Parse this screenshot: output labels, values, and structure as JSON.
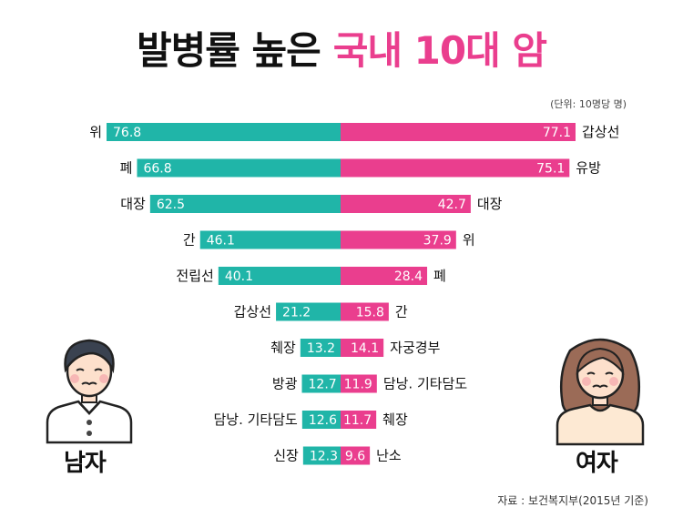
{
  "title": {
    "part1": "발병률 높은",
    "part2": "국내 10대 암"
  },
  "unit_note": "(단위: 10명당 명)",
  "colors": {
    "male": "#20b5a8",
    "female": "#ea3e8e",
    "title_accent": "#ea3e8e"
  },
  "chart_data": {
    "type": "bar",
    "layout": "butterfly",
    "series": [
      {
        "name": "남자",
        "categories": [
          "위",
          "폐",
          "대장",
          "간",
          "전립선",
          "갑상선",
          "췌장",
          "방광",
          "담낭. 기타담도",
          "신장"
        ],
        "values": [
          76.8,
          66.8,
          62.5,
          46.1,
          40.1,
          21.2,
          13.2,
          12.7,
          12.6,
          12.3
        ]
      },
      {
        "name": "여자",
        "categories": [
          "갑상선",
          "유방",
          "대장",
          "위",
          "폐",
          "간",
          "자궁경부",
          "담낭. 기타담도",
          "췌장",
          "난소"
        ],
        "values": [
          77.1,
          75.1,
          42.7,
          37.9,
          28.4,
          15.8,
          14.1,
          11.9,
          11.7,
          9.6
        ]
      }
    ]
  },
  "labels": {
    "male": "남자",
    "female": "여자"
  },
  "source": "자료 : 보건복지부(2015년 기준)"
}
